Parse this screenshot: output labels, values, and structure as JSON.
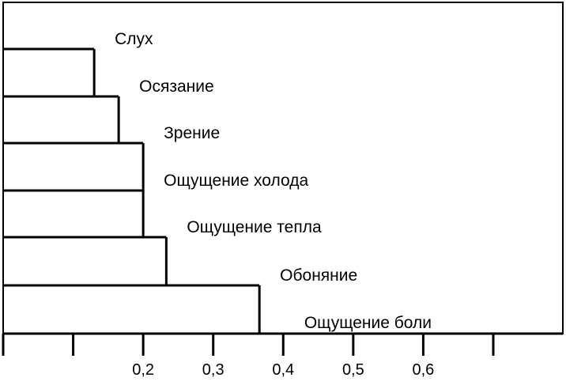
{
  "chart_data": {
    "type": "bar",
    "orientation": "horizontal",
    "stacked_steps": true,
    "categories": [
      "Слух",
      "Осязание",
      "Зрение",
      "Ощущение холода",
      "Ощущение тепла",
      "Обоняние",
      "Ощущение боли"
    ],
    "values": [
      0.13,
      0.165,
      0.2,
      0.2,
      0.233,
      0.366,
      0
    ],
    "title": "",
    "xlabel": "",
    "ylabel": "",
    "xlim": [
      0,
      0.8
    ],
    "x_ticks": [
      0.1,
      0.2,
      0.3,
      0.4,
      0.5,
      0.6,
      0.7
    ],
    "x_tick_labels": [
      "",
      "0,2",
      "0,3",
      "0,4",
      "0,5",
      "0,6",
      ""
    ],
    "grid": false,
    "legend": "none"
  }
}
